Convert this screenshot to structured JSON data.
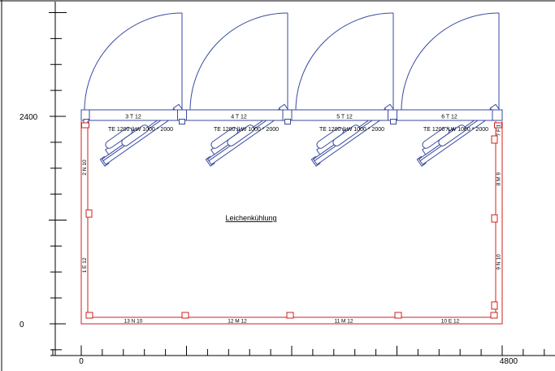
{
  "colors": {
    "panel_blue": "#3a4aa0",
    "wall_red": "#cc2020",
    "axis_black": "#000000",
    "background": "#ffffff"
  },
  "room": {
    "name": "Leichenkühlung"
  },
  "axes": {
    "y": {
      "top_label": "2400",
      "bottom_label": "0"
    },
    "x": {
      "left_label": "0",
      "right_label": "4800"
    }
  },
  "top_wall": {
    "panels": [
      {
        "label": "3 T 12",
        "spec": "TE 1200 /LW 1000 * 2000"
      },
      {
        "label": "4 T 12",
        "spec": "TE 1200 /LW 1000 * 2000"
      },
      {
        "label": "5 T 12",
        "spec": "TE 1200 /LW 1000 * 2000"
      },
      {
        "label": "6 T 12",
        "spec": "TE 1200 /LW 1000 * 2000"
      }
    ]
  },
  "left_wall": {
    "panels": [
      {
        "label": "2 N 10"
      },
      {
        "label": "1 E 12"
      }
    ]
  },
  "right_wall": {
    "panels": [
      {
        "label": "7 F 1"
      },
      {
        "label": "8 M 9"
      },
      {
        "label": "9 N 10"
      }
    ]
  },
  "bottom_wall": {
    "panels": [
      {
        "label": "13 N 10"
      },
      {
        "label": "12 M 12"
      },
      {
        "label": "11 M 12"
      },
      {
        "label": "10 E 12"
      }
    ]
  }
}
